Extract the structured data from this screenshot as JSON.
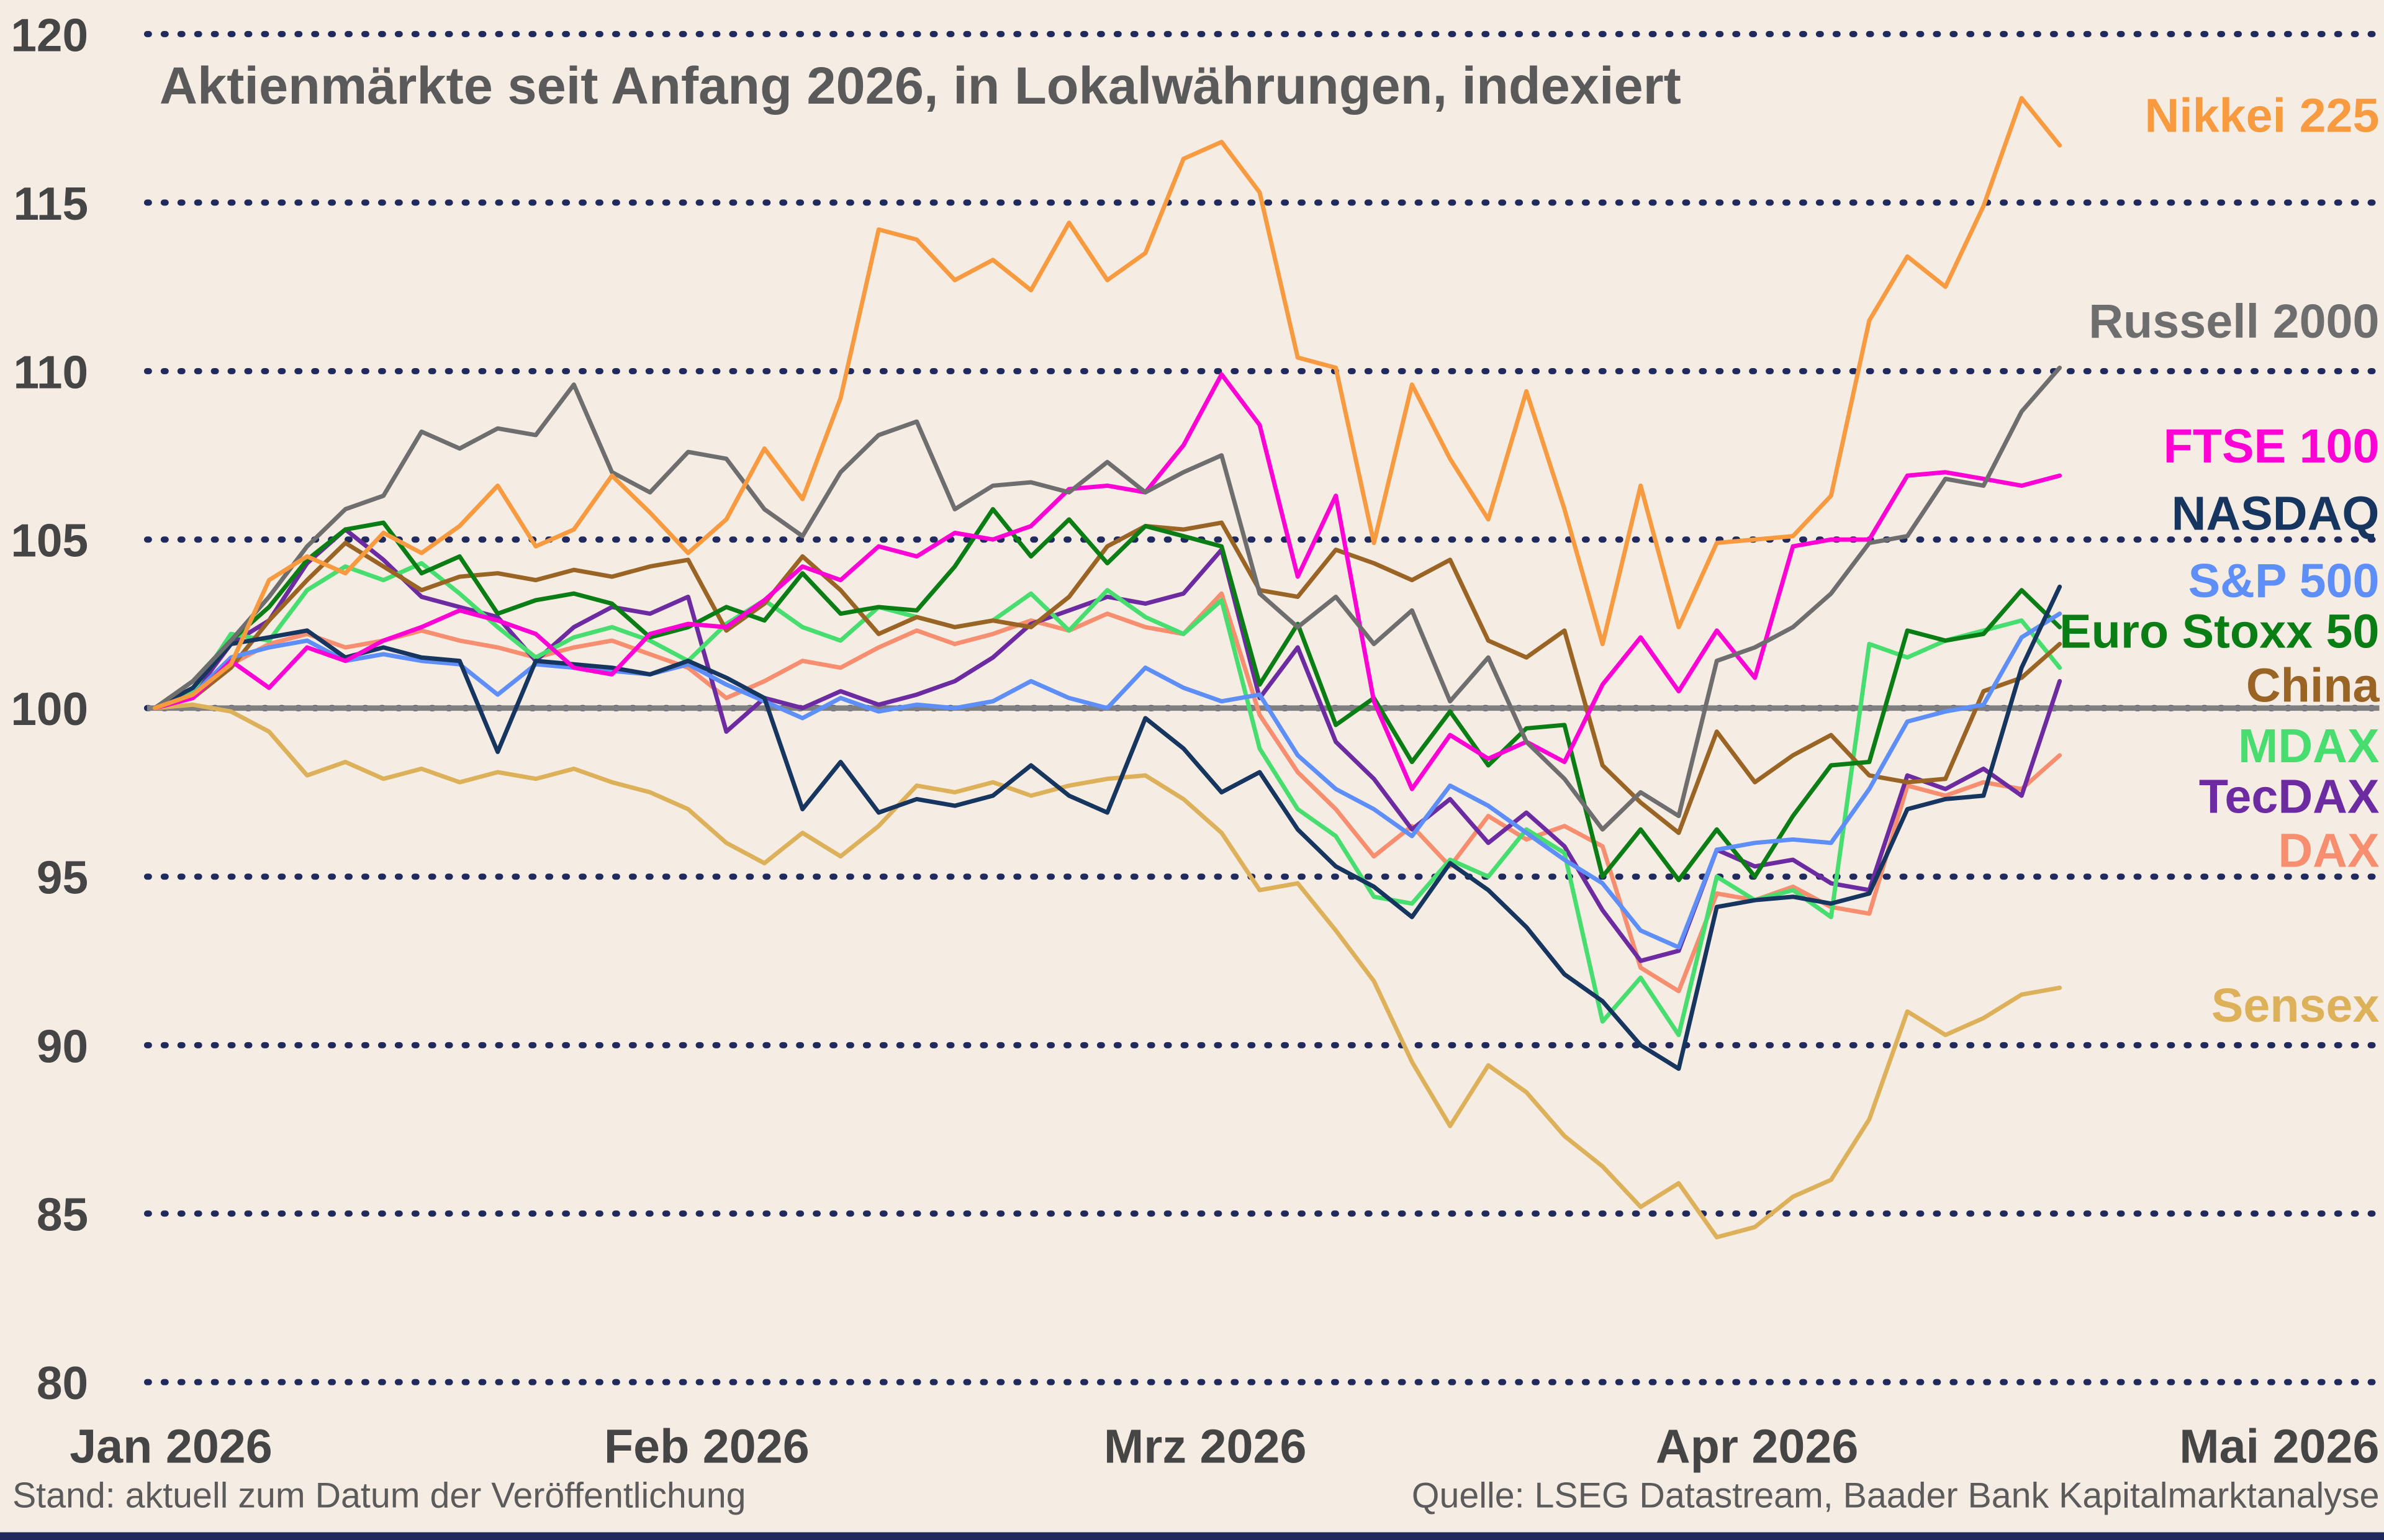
{
  "colors": {
    "background": "#F5ECE4",
    "grid_dots": "#202A5C",
    "baseline": "#7F7F7F",
    "axis_text": "#454545",
    "title_text": "#5A5A5A",
    "footer_text": "#5B5B5B"
  },
  "chart_data": {
    "type": "line",
    "title": "Aktienmärkte seit Anfang 2026, in Lokalwährungen, indexiert",
    "footnote": "Stand: aktuell zum Datum der Veröffentlichung",
    "source": "Quelle: LSEG Datastream, Baader Bank Kapitalmarktanalyse",
    "grid": "dotted-horizontal",
    "baseline_value": 100,
    "y_axis": {
      "min": 80,
      "max": 120,
      "ticks": [
        120,
        115,
        110,
        105,
        100,
        95,
        90,
        85,
        80
      ]
    },
    "x_axis": {
      "labels": [
        "Jan 2026",
        "Feb 2026",
        "Mrz 2026",
        "Apr 2026",
        "Mai 2026"
      ],
      "label_days": [
        0,
        31,
        59,
        90,
        120
      ],
      "total_days": 120,
      "series_end_day": 107
    },
    "series": [
      {
        "name": "Nikkei 225",
        "color": "#F89B40",
        "label_value": 117.6,
        "values": [
          100,
          100.4,
          101.3,
          103.8,
          104.5,
          104.0,
          105.2,
          104.6,
          105.4,
          106.6,
          104.8,
          105.3,
          106.9,
          105.8,
          104.6,
          105.6,
          107.7,
          106.2,
          109.2,
          114.2,
          113.9,
          112.7,
          113.3,
          112.4,
          114.4,
          112.7,
          113.5,
          116.3,
          116.8,
          115.3,
          110.4,
          110.1,
          104.9,
          109.6,
          107.4,
          105.6,
          109.4,
          105.9,
          101.9,
          106.6,
          102.4,
          104.9,
          105.0,
          105.1,
          106.3,
          111.5,
          113.4,
          112.5,
          114.9,
          118.1,
          116.7
        ]
      },
      {
        "name": "Russell 2000",
        "color": "#6E6E6E",
        "label_value": 111.5,
        "values": [
          100,
          100.8,
          102.0,
          103.3,
          104.8,
          105.9,
          106.3,
          108.2,
          107.7,
          108.3,
          108.1,
          109.6,
          107.0,
          106.4,
          107.6,
          107.4,
          105.9,
          105.1,
          107.0,
          108.1,
          108.5,
          105.9,
          106.6,
          106.7,
          106.4,
          107.3,
          106.4,
          107.0,
          107.5,
          103.4,
          102.4,
          103.3,
          101.9,
          102.9,
          100.2,
          101.5,
          99.0,
          97.9,
          96.4,
          97.5,
          96.8,
          101.4,
          101.8,
          102.4,
          103.4,
          104.9,
          105.1,
          106.8,
          106.6,
          108.8,
          110.1
        ]
      },
      {
        "name": "FTSE 100",
        "color": "#FF00D5",
        "label_value": 107.8,
        "values": [
          100,
          100.3,
          101.4,
          100.6,
          101.8,
          101.4,
          102.0,
          102.4,
          102.9,
          102.6,
          102.2,
          101.2,
          101.0,
          102.2,
          102.5,
          102.4,
          103.2,
          104.2,
          103.8,
          104.8,
          104.5,
          105.2,
          105.0,
          105.4,
          106.5,
          106.6,
          106.4,
          107.8,
          109.9,
          108.4,
          103.9,
          106.3,
          100.2,
          97.6,
          99.2,
          98.5,
          99.0,
          98.4,
          100.7,
          102.1,
          100.5,
          102.3,
          100.9,
          104.8,
          105.0,
          105.0,
          106.9,
          107.0,
          106.8,
          106.6,
          106.9
        ]
      },
      {
        "name": "NASDAQ",
        "color": "#16355F",
        "label_value": 105.8,
        "values": [
          100,
          100.6,
          101.9,
          102.1,
          102.3,
          101.5,
          101.8,
          101.5,
          101.4,
          98.7,
          101.4,
          101.3,
          101.2,
          101.0,
          101.4,
          100.9,
          100.3,
          97.0,
          98.4,
          96.9,
          97.3,
          97.1,
          97.4,
          98.3,
          97.4,
          96.9,
          99.7,
          98.8,
          97.5,
          98.1,
          96.4,
          95.3,
          94.7,
          93.8,
          95.4,
          94.6,
          93.5,
          92.1,
          91.3,
          90.0,
          89.3,
          94.1,
          94.3,
          94.4,
          94.2,
          94.5,
          97.0,
          97.3,
          97.4,
          101.2,
          103.6
        ]
      },
      {
        "name": "S&P 500",
        "color": "#5E8EF7",
        "label_value": 103.8,
        "values": [
          100,
          100.4,
          101.5,
          101.8,
          102.0,
          101.4,
          101.6,
          101.4,
          101.3,
          100.4,
          101.3,
          101.2,
          101.1,
          101.0,
          101.3,
          100.7,
          100.2,
          99.7,
          100.3,
          99.9,
          100.1,
          100.0,
          100.2,
          100.8,
          100.3,
          100.0,
          101.2,
          100.6,
          100.2,
          100.4,
          98.6,
          97.6,
          97.0,
          96.2,
          97.7,
          97.1,
          96.3,
          95.5,
          94.8,
          93.4,
          92.9,
          95.8,
          96.0,
          96.1,
          96.0,
          97.6,
          99.6,
          99.9,
          100.1,
          102.1,
          102.8
        ]
      },
      {
        "name": "Euro Stoxx 50",
        "color": "#0A7D14",
        "label_value": 102.3,
        "values": [
          100,
          100.8,
          102.0,
          103.0,
          104.4,
          105.3,
          105.5,
          104.0,
          104.5,
          102.8,
          103.2,
          103.4,
          103.1,
          102.1,
          102.4,
          103.0,
          102.6,
          104.0,
          102.8,
          103.0,
          102.9,
          104.2,
          105.9,
          104.5,
          105.6,
          104.3,
          105.4,
          105.1,
          104.8,
          100.7,
          102.5,
          99.5,
          100.3,
          98.4,
          99.9,
          98.3,
          99.4,
          99.5,
          95.0,
          96.4,
          94.9,
          96.4,
          95.0,
          96.8,
          98.3,
          98.4,
          102.3,
          102.0,
          102.2,
          103.5,
          102.4
        ]
      },
      {
        "name": "China",
        "color": "#9A6425",
        "label_value": 100.7,
        "values": [
          100,
          100.3,
          101.2,
          102.6,
          103.8,
          104.9,
          104.2,
          103.5,
          103.9,
          104.0,
          103.8,
          104.1,
          103.9,
          104.2,
          104.4,
          102.3,
          103.1,
          104.5,
          103.5,
          102.2,
          102.7,
          102.4,
          102.6,
          102.4,
          103.3,
          104.8,
          105.4,
          105.3,
          105.5,
          103.5,
          103.3,
          104.7,
          104.3,
          103.8,
          104.4,
          102.0,
          101.5,
          102.3,
          98.3,
          97.2,
          96.3,
          99.3,
          97.8,
          98.6,
          99.2,
          98.0,
          97.8,
          97.9,
          100.5,
          100.9,
          101.9
        ]
      },
      {
        "name": "MDAX",
        "color": "#47DD6F",
        "label_value": 98.9,
        "values": [
          100,
          100.5,
          102.2,
          102.0,
          103.5,
          104.2,
          103.8,
          104.3,
          103.4,
          102.4,
          101.5,
          102.1,
          102.4,
          102.0,
          101.4,
          102.5,
          103.2,
          102.4,
          102.0,
          103.0,
          102.7,
          102.4,
          102.6,
          103.4,
          102.3,
          103.5,
          102.7,
          102.2,
          103.2,
          98.8,
          97.0,
          96.2,
          94.4,
          94.2,
          95.5,
          95.0,
          96.4,
          95.7,
          90.7,
          92.0,
          90.3,
          95.0,
          94.3,
          94.6,
          93.8,
          101.9,
          101.5,
          102.0,
          102.3,
          102.6,
          101.2
        ]
      },
      {
        "name": "TecDAX",
        "color": "#6C2BA0",
        "label_value": 97.4,
        "values": [
          100,
          100.4,
          101.9,
          102.6,
          104.3,
          105.3,
          104.4,
          103.3,
          103.0,
          102.7,
          101.4,
          102.4,
          103.0,
          102.8,
          103.3,
          99.3,
          100.3,
          100.0,
          100.5,
          100.1,
          100.4,
          100.8,
          101.5,
          102.5,
          102.9,
          103.3,
          103.1,
          103.4,
          104.7,
          100.3,
          101.8,
          99.0,
          97.9,
          96.4,
          97.3,
          96.0,
          96.9,
          95.9,
          94.0,
          92.5,
          92.8,
          95.8,
          95.3,
          95.5,
          94.8,
          94.6,
          98.0,
          97.6,
          98.2,
          97.4,
          100.8
        ]
      },
      {
        "name": "DAX",
        "color": "#F68E6F",
        "label_value": 95.8,
        "values": [
          100,
          100.4,
          101.3,
          101.9,
          102.2,
          101.8,
          102.0,
          102.3,
          102.0,
          101.8,
          101.5,
          101.8,
          102.0,
          101.6,
          101.2,
          100.3,
          100.8,
          101.4,
          101.2,
          101.8,
          102.3,
          101.9,
          102.2,
          102.6,
          102.3,
          102.8,
          102.4,
          102.2,
          103.4,
          99.8,
          98.1,
          97.0,
          95.6,
          96.5,
          95.3,
          96.8,
          96.1,
          96.5,
          95.9,
          92.3,
          91.6,
          94.5,
          94.3,
          94.7,
          94.1,
          93.9,
          97.7,
          97.4,
          97.8,
          97.6,
          98.6
        ]
      },
      {
        "name": "Sensex",
        "color": "#DCB15A",
        "label_value": 91.2,
        "values": [
          100,
          100.1,
          99.9,
          99.3,
          98.0,
          98.4,
          97.9,
          98.2,
          97.8,
          98.1,
          97.9,
          98.2,
          97.8,
          97.5,
          97.0,
          96.0,
          95.4,
          96.3,
          95.6,
          96.5,
          97.7,
          97.5,
          97.8,
          97.4,
          97.7,
          97.9,
          98.0,
          97.3,
          96.3,
          94.6,
          94.8,
          93.4,
          91.9,
          89.5,
          87.6,
          89.4,
          88.6,
          87.3,
          86.4,
          85.2,
          85.9,
          84.3,
          84.6,
          85.5,
          86.0,
          87.8,
          91.0,
          90.3,
          90.8,
          91.5,
          91.7
        ]
      }
    ]
  }
}
